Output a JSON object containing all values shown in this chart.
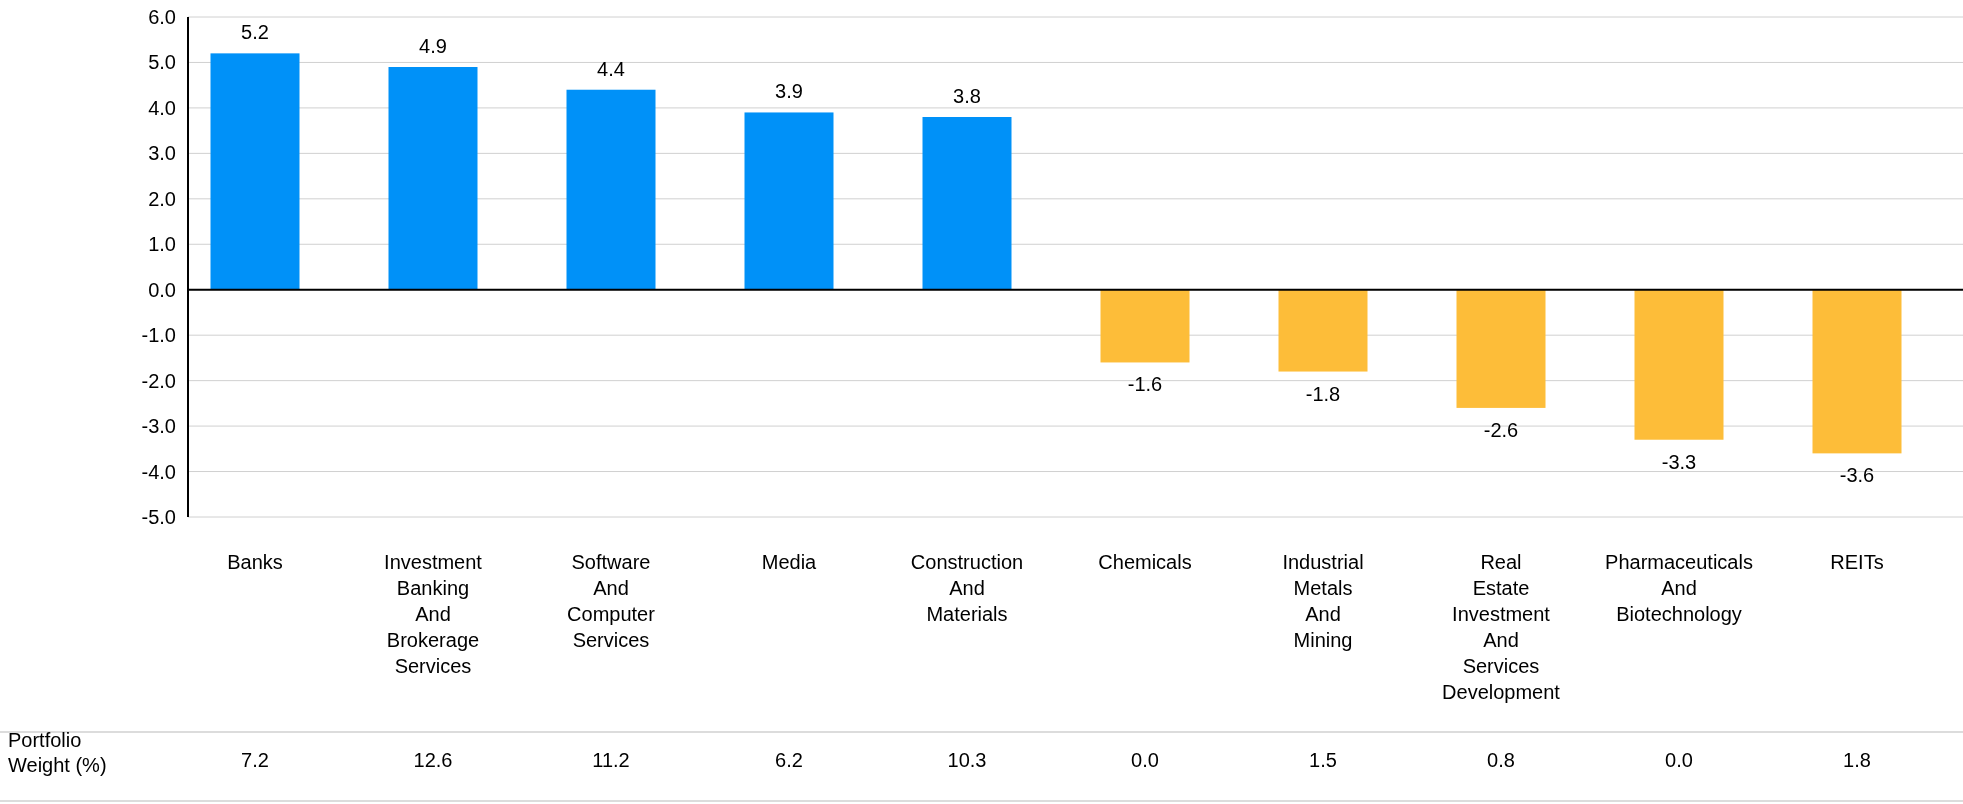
{
  "chart_data": {
    "type": "bar",
    "categories": [
      "Banks",
      "Investment Banking And Brokerage Services",
      "Software And Computer Services",
      "Media",
      "Construction And Materials",
      "Chemicals",
      "Industrial Metals And Mining",
      "Real Estate Investment And Services Development",
      "Pharmaceuticals And Biotechnology",
      "REITs"
    ],
    "values": [
      5.2,
      4.9,
      4.4,
      3.9,
      3.8,
      -1.6,
      -1.8,
      -2.6,
      -3.3,
      -3.6
    ],
    "colors": [
      "#0091f8",
      "#0091f8",
      "#0091f8",
      "#0091f8",
      "#0091f8",
      "#fdbd39",
      "#fdbd39",
      "#fdbd39",
      "#fdbd39",
      "#fdbd39"
    ],
    "ylim": [
      -5,
      6
    ],
    "yticks": [
      {
        "value": -5,
        "label": "-5.0"
      },
      {
        "value": -4,
        "label": "-4.0"
      },
      {
        "value": -3,
        "label": "-3.0"
      },
      {
        "value": -2,
        "label": "-2.0"
      },
      {
        "value": -1,
        "label": "-1.0"
      },
      {
        "value": 0,
        "label": "0.0"
      },
      {
        "value": 1,
        "label": "1.0"
      },
      {
        "value": 2,
        "label": "2.0"
      },
      {
        "value": 3,
        "label": "3.0"
      },
      {
        "value": 4,
        "label": "4.0"
      },
      {
        "value": 5,
        "label": "5.0"
      },
      {
        "value": 6,
        "label": "6.0"
      }
    ],
    "grid": "y",
    "data_labels": true,
    "annotations": [
      "Portfolio Weight (%)",
      "7.2",
      "12.6",
      "11.2",
      "6.2",
      "10.3",
      "0.0",
      "1.5",
      "0.8",
      "0.0",
      "1.8"
    ]
  }
}
